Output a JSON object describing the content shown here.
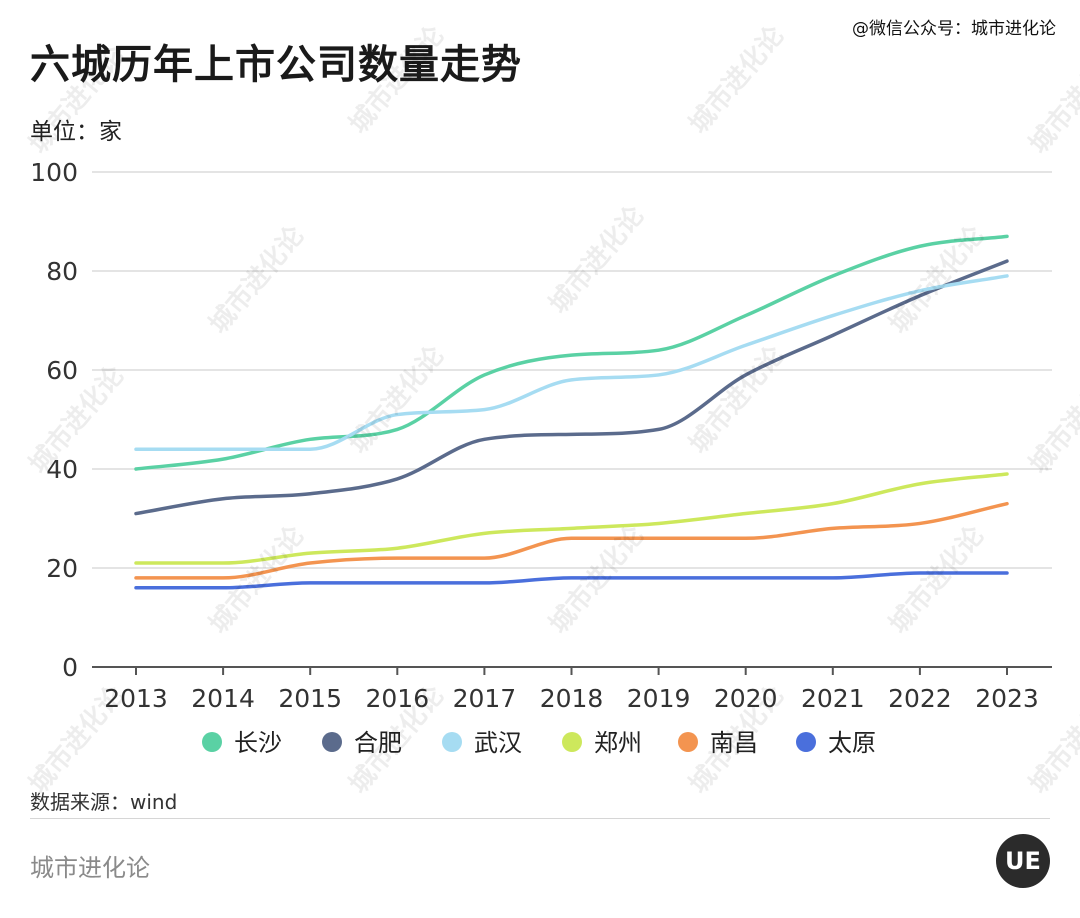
{
  "header": {
    "title": "六城历年上市公司数量走势",
    "credit": "@微信公众号：城市进化论",
    "unit": "单位：家"
  },
  "footer": {
    "source": "数据来源：wind",
    "brand": "城市进化论",
    "logo_text": "UE"
  },
  "watermark": {
    "text": "城市进化论"
  },
  "chart_data": {
    "type": "line",
    "title": "六城历年上市公司数量走势",
    "xlabel": "",
    "ylabel": "单位：家",
    "x": [
      "2013",
      "2014",
      "2015",
      "2016",
      "2017",
      "2018",
      "2019",
      "2020",
      "2021",
      "2022",
      "2023"
    ],
    "ylim": [
      0,
      100
    ],
    "yticks": [
      0,
      20,
      40,
      60,
      80,
      100
    ],
    "grid": true,
    "legend": "bottom",
    "series": [
      {
        "name": "长沙",
        "color": "#5ad1a4",
        "values": [
          40,
          42,
          46,
          48,
          59,
          63,
          64,
          71,
          79,
          85,
          87
        ]
      },
      {
        "name": "合肥",
        "color": "#5b6b8c",
        "values": [
          31,
          34,
          35,
          38,
          46,
          47,
          48,
          59,
          67,
          75,
          82
        ]
      },
      {
        "name": "武汉",
        "color": "#a6dcf2",
        "values": [
          44,
          44,
          44,
          51,
          52,
          58,
          59,
          65,
          71,
          76,
          79
        ]
      },
      {
        "name": "郑州",
        "color": "#cde85c",
        "values": [
          21,
          21,
          23,
          24,
          27,
          28,
          29,
          31,
          33,
          37,
          39
        ]
      },
      {
        "name": "南昌",
        "color": "#f39450",
        "values": [
          18,
          18,
          21,
          22,
          22,
          26,
          26,
          26,
          28,
          29,
          33
        ]
      },
      {
        "name": "太原",
        "color": "#4a6fdc",
        "values": [
          16,
          16,
          17,
          17,
          17,
          18,
          18,
          18,
          18,
          19,
          19
        ]
      }
    ]
  }
}
